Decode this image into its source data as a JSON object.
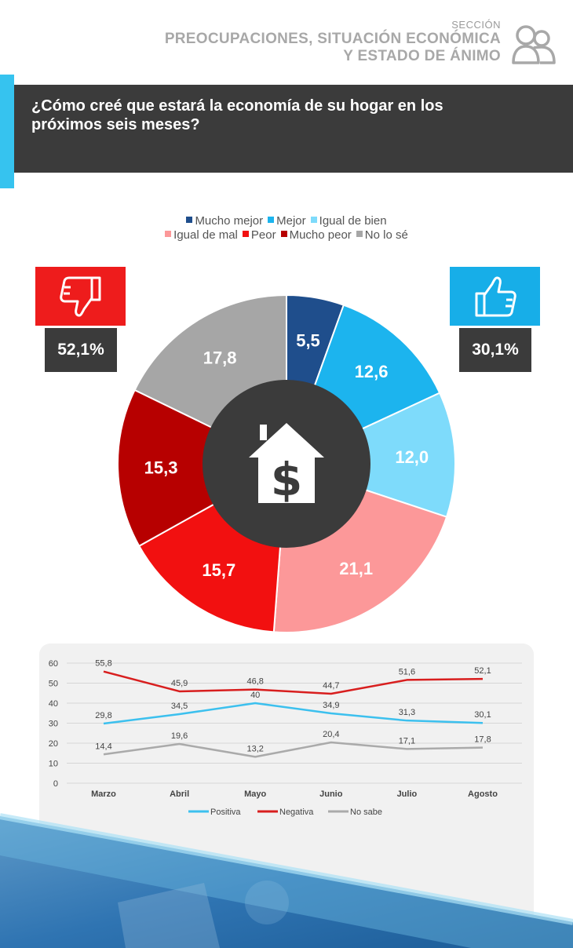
{
  "header": {
    "section_label": "SECCIÓN",
    "title_line1": "PREOCUPACIONES, SITUACIÓN ECONÓMICA",
    "title_line2": "Y ESTADO DE ÁNIMO",
    "icon": "people-icon"
  },
  "question": {
    "line1": "¿Cómo creé que estará la economía de su hogar en los",
    "line2": "próximos seis meses?"
  },
  "summary": {
    "negative_value": "52,1%",
    "negative_icon": "thumbs-down-icon",
    "negative_color": "#ee1c1c",
    "positive_value": "30,1%",
    "positive_icon": "thumbs-up-icon",
    "positive_color": "#17aee8"
  },
  "center_icon": "house-dollar-icon",
  "chart_data": [
    {
      "type": "pie",
      "donut": true,
      "legend_placement": "top",
      "slices": [
        {
          "name": "Mucho mejor",
          "value": 5.5,
          "label": "5,5",
          "color": "#1f4e8c"
        },
        {
          "name": "Mejor",
          "value": 12.6,
          "label": "12,6",
          "color": "#1cb4ee"
        },
        {
          "name": "Igual de bien",
          "value": 12.0,
          "label": "12,0",
          "color": "#7edbfb"
        },
        {
          "name": "Igual de mal",
          "value": 21.1,
          "label": "21,1",
          "color": "#fc9899"
        },
        {
          "name": "Peor",
          "value": 15.7,
          "label": "15,7",
          "color": "#f21010"
        },
        {
          "name": "Mucho peor",
          "value": 15.3,
          "label": "15,3",
          "color": "#b70000"
        },
        {
          "name": "No lo sé",
          "value": 17.8,
          "label": "17,8",
          "color": "#a6a6a6"
        }
      ]
    },
    {
      "type": "line",
      "categories": [
        "Marzo",
        "Abril",
        "Mayo",
        "Junio",
        "Julio",
        "Agosto"
      ],
      "ylim": [
        0,
        60
      ],
      "yticks": [
        0,
        10,
        20,
        30,
        40,
        50,
        60
      ],
      "grid": true,
      "legend_placement": "bottom",
      "series": [
        {
          "name": "Positiva",
          "values": [
            29.8,
            34.5,
            40,
            34.9,
            31.3,
            30.1
          ],
          "labels": [
            "29,8",
            "34,5",
            "40",
            "34,9",
            "31,3",
            "30,1"
          ],
          "color": "#3cc0ee"
        },
        {
          "name": "Negativa",
          "values": [
            55.8,
            45.9,
            46.8,
            44.7,
            51.6,
            52.1
          ],
          "labels": [
            "55,8",
            "45,9",
            "46,8",
            "44,7",
            "51,6",
            "52,1"
          ],
          "color": "#d81e1e"
        },
        {
          "name": "No sabe",
          "values": [
            14.4,
            19.6,
            13.2,
            20.4,
            17.1,
            17.8
          ],
          "labels": [
            "14,4",
            "19,6",
            "13,2",
            "20,4",
            "17,1",
            "17,8"
          ],
          "color": "#aaaaaa"
        }
      ]
    }
  ]
}
